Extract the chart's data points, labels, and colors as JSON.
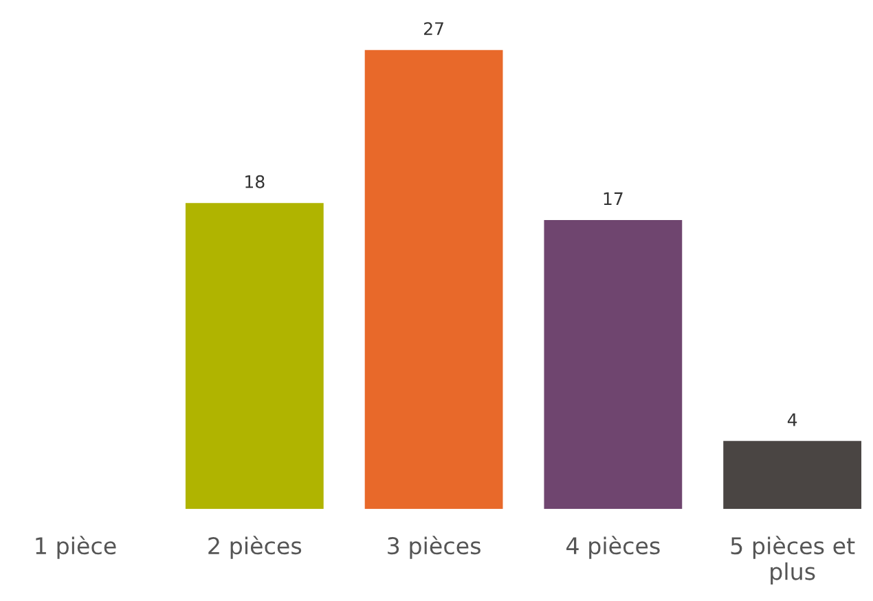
{
  "chart_data": {
    "type": "bar",
    "categories": [
      "1 pièce",
      "2 pièces",
      "3 pièces",
      "4 pièces",
      "5 pièces et\nplus"
    ],
    "values": [
      0,
      18,
      27,
      17,
      4
    ],
    "colors": [
      "#b0b400",
      "#b0b400",
      "#e8692a",
      "#6f456f",
      "#4a4543"
    ],
    "value_labels": [
      null,
      "18",
      "27",
      "17",
      "4"
    ],
    "grid": false,
    "legend": false
  }
}
